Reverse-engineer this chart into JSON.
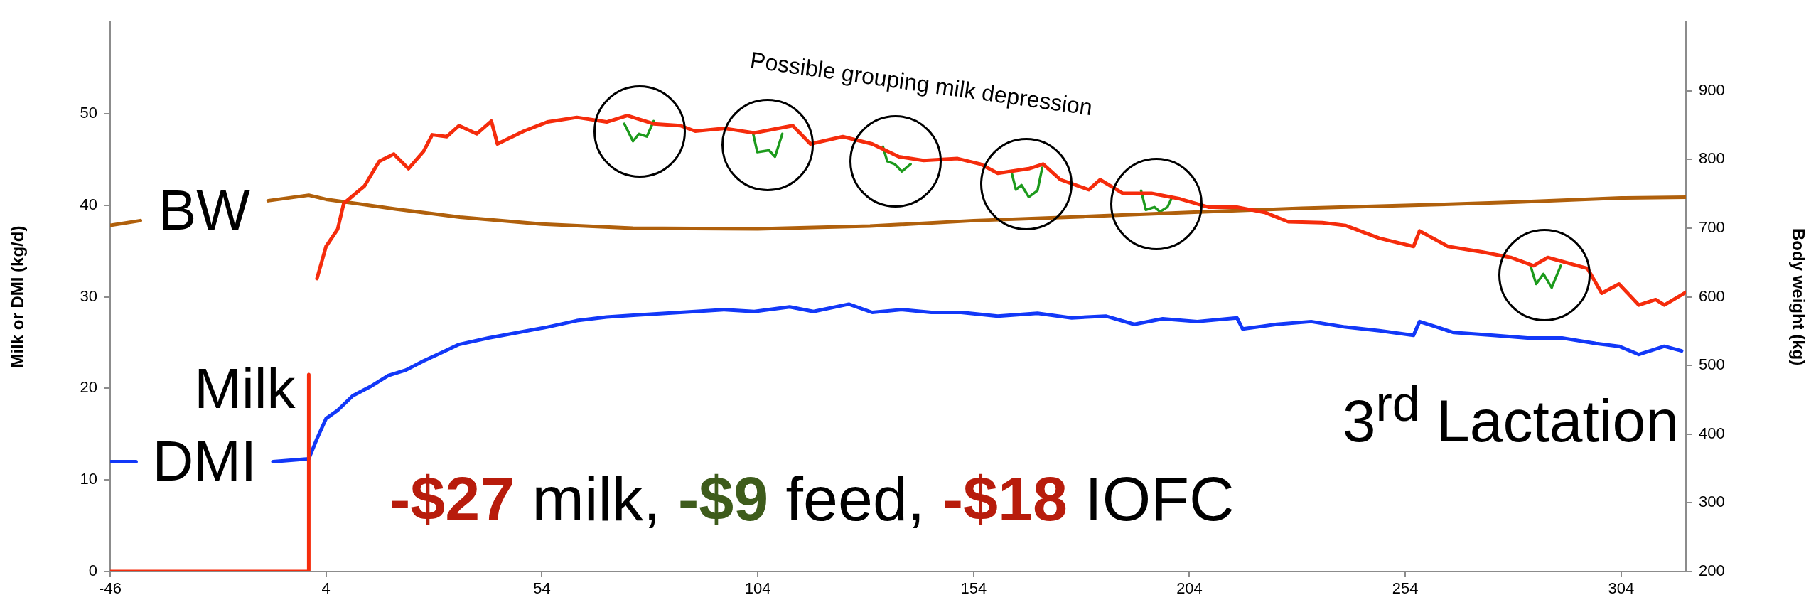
{
  "chart_data": {
    "type": "line",
    "xlabel": null,
    "ylabel": "Milk or DMI (kg/d)",
    "y2label": "Body weight (kg)",
    "xlim": [
      -46,
      319
    ],
    "xticks": [
      -46,
      4,
      54,
      104,
      154,
      204,
      254,
      304
    ],
    "ylim": [
      0,
      60
    ],
    "yticks": [
      0,
      10,
      20,
      30,
      40,
      50
    ],
    "y2lim": [
      200,
      1000
    ],
    "y2ticks": [
      200,
      300,
      400,
      500,
      600,
      700,
      800,
      900
    ],
    "grid": false,
    "legend": false,
    "marker": "none",
    "line_style": "solid",
    "annotations": [
      "Possible grouping milk depression",
      "3$^{rd}$ Lactation",
      "-$27 milk, -$9 feed, -$18 IOFC"
    ],
    "series": [
      {
        "name": "Milk",
        "color": "#f52c0c",
        "x": [
          -46,
          0,
          0,
          0.95,
          1.9,
          4,
          6.7,
          8.1,
          12.9,
          16.3,
          19.7,
          23.1,
          26.6,
          28.6,
          32,
          34.8,
          38.9,
          42.3,
          43.7,
          49.8,
          55.3,
          62.1,
          69,
          73.8,
          79.9,
          86.1,
          89.5,
          96.3,
          103.2,
          112.1,
          116.2,
          123.7,
          130.5,
          136.7,
          142.4,
          150.3,
          155.6,
          159.6,
          166.8,
          170.1,
          174.1,
          180.7,
          183.3,
          188.6,
          195.2,
          201.8,
          208.4,
          215,
          221.6,
          226.9,
          234.8,
          240.1,
          248,
          255.9,
          257.3,
          263.9,
          271.8,
          278.4,
          283.7,
          287,
          296.2,
          299.5,
          303.5,
          308.1,
          312,
          314,
          319
        ],
        "values": [
          0,
          0,
          21.5,
          null,
          32,
          35.5,
          37.4,
          40.2,
          42.1,
          44.8,
          45.6,
          44,
          45.9,
          47.7,
          47.5,
          48.7,
          47.8,
          49.2,
          46.7,
          48.1,
          49.1,
          49.6,
          49.1,
          49.8,
          48.9,
          48.7,
          48.1,
          48.4,
          47.9,
          48.7,
          46.7,
          47.5,
          46.7,
          45.3,
          44.9,
          45.1,
          44.5,
          43.5,
          44,
          44.5,
          42.8,
          41.7,
          42.8,
          41.3,
          41.3,
          40.7,
          39.8,
          39.8,
          39.2,
          38.2,
          38.1,
          37.8,
          36.4,
          35.5,
          37.2,
          35.5,
          34.9,
          34.3,
          33.4,
          34.3,
          33.1,
          30.4,
          31.4,
          29.1,
          29.7,
          29.1,
          30.5
        ]
      },
      {
        "name": "DMI",
        "color": "#1238f8",
        "x": [
          -46,
          -40,
          -24,
          -8.3,
          0,
          1.9,
          4,
          6.7,
          10.2,
          14.3,
          18.4,
          22.5,
          26.6,
          30.7,
          34.8,
          41.6,
          48.5,
          55.3,
          62.1,
          69,
          75.8,
          82.7,
          89.5,
          96.3,
          103.2,
          111.4,
          116.9,
          125.1,
          130.5,
          137.4,
          144.2,
          151.1,
          159.6,
          168.8,
          176.7,
          184.6,
          191.2,
          197.8,
          205.8,
          215,
          216.3,
          224.2,
          232.2,
          240.1,
          248,
          255.9,
          257.3,
          265.2,
          274.4,
          282.3,
          290.3,
          298.2,
          303.5,
          308.1,
          314,
          318
        ],
        "values": [
          12,
          12,
          null,
          12,
          12.3,
          14.5,
          16.7,
          17.6,
          19.2,
          20.2,
          21.4,
          22,
          23,
          23.9,
          24.8,
          25.5,
          26.1,
          26.7,
          27.4,
          27.8,
          28,
          28.2,
          28.4,
          28.6,
          28.4,
          28.9,
          28.4,
          29.2,
          28.3,
          28.6,
          28.3,
          28.3,
          27.9,
          28.2,
          27.7,
          27.9,
          27,
          27.6,
          27.3,
          27.7,
          26.5,
          27,
          27.3,
          26.7,
          26.3,
          25.8,
          27.3,
          26.1,
          25.8,
          25.5,
          25.5,
          24.9,
          24.6,
          23.7,
          24.6,
          24.1
        ]
      },
      {
        "name": "BW",
        "color": "#b0600c",
        "axis": "y2",
        "x": [
          -46,
          -39,
          -24,
          -9.4,
          0,
          4,
          20,
          35,
          54,
          75,
          104,
          130,
          154,
          180,
          204,
          230,
          254,
          280,
          304,
          319
        ],
        "values": [
          704,
          711,
          null,
          740,
          748,
          742,
          728,
          716,
          706,
          700,
          699,
          703,
          711,
          717,
          723,
          729,
          733,
          738,
          744,
          745
        ]
      },
      {
        "color": "#1c9a1c",
        "x": [
          73.1,
          75.1,
          76.5,
          78.3,
          79.9,
          91,
          102.9,
          103.9,
          106.6,
          108,
          109.7,
          121,
          133,
          134,
          135.7,
          137.4,
          139.4,
          151,
          162.9,
          163.8,
          165.1,
          166.8,
          168.8,
          169.9,
          181,
          192.8,
          193.9,
          195.9,
          197.2,
          198.9,
          199.8,
          241,
          283,
          284.3,
          286,
          287.9,
          290
        ],
        "values": [
          48.9,
          47,
          47.8,
          47.5,
          49.2,
          null,
          47.9,
          45.8,
          46,
          45.3,
          47.8,
          null,
          46.4,
          44.8,
          44.5,
          43.7,
          44.5,
          null,
          43.4,
          41.7,
          42.2,
          40.9,
          41.6,
          44.1,
          null,
          41.6,
          39.5,
          39.8,
          39.3,
          39.8,
          40.7,
          null,
          33.4,
          31.4,
          32.5,
          31,
          33.4
        ]
      }
    ]
  }
}
